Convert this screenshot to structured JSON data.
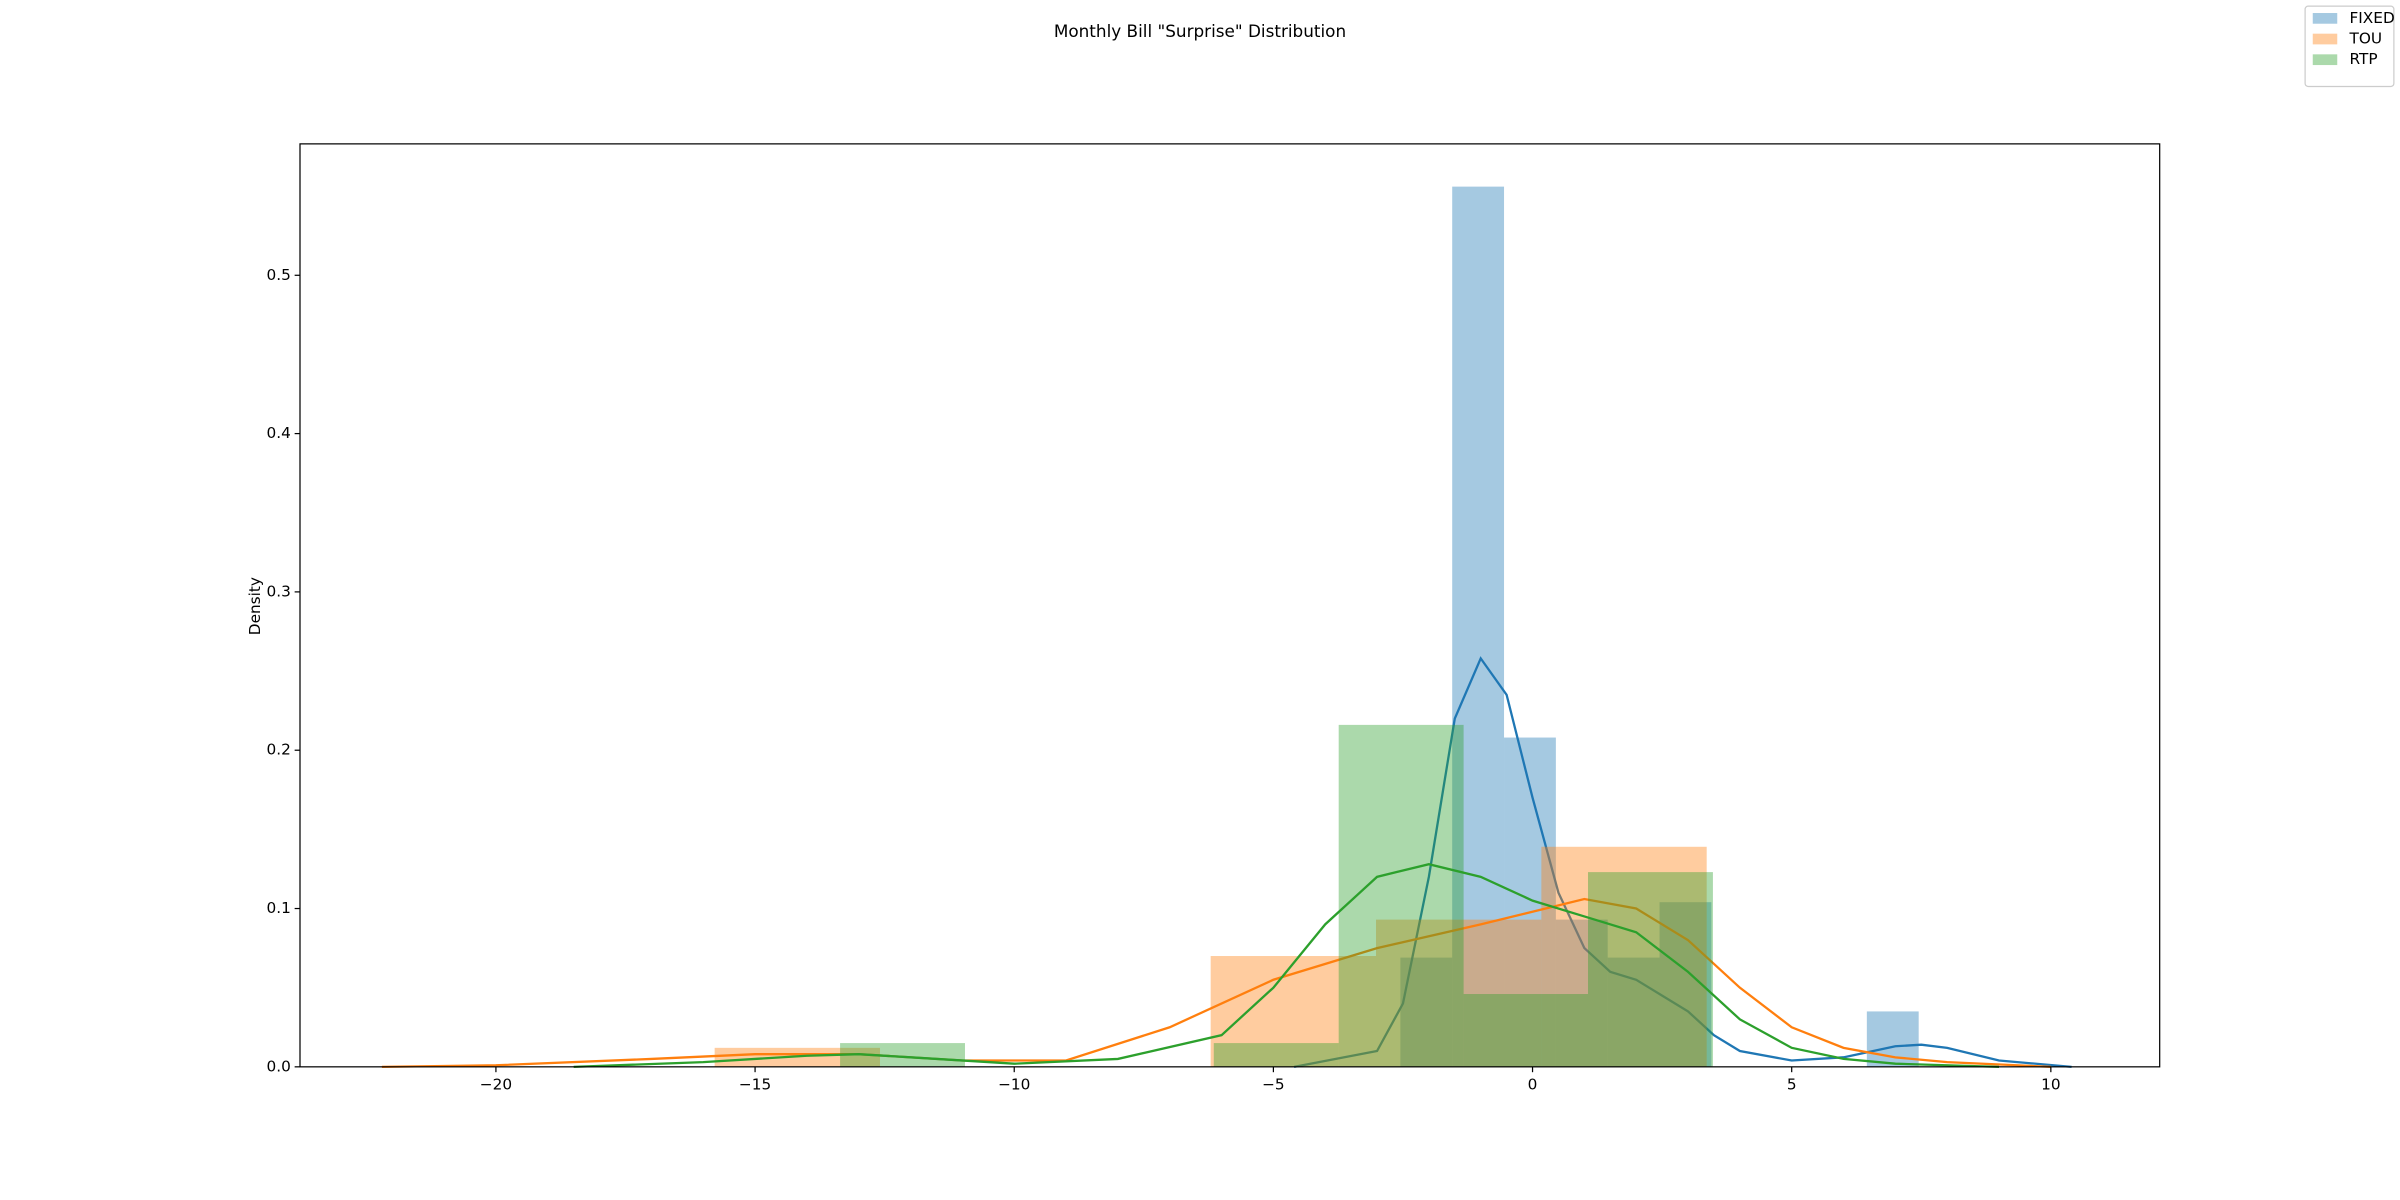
{
  "chart_data": {
    "type": "histogram",
    "title": "Monthly Bill \"Surprise\" Distribution",
    "y_label": "Density",
    "xlim": [
      -23.78,
      12.1
    ],
    "ylim": [
      0,
      0.583
    ],
    "xticks": [
      {
        "value": -20,
        "label": "−20"
      },
      {
        "value": -15,
        "label": "−15"
      },
      {
        "value": -10,
        "label": "−10"
      },
      {
        "value": -5,
        "label": "−5"
      },
      0,
      5,
      10
    ],
    "yticks": [
      {
        "value": 0,
        "label": "0.0"
      },
      0.1,
      0.2,
      0.3,
      0.4,
      0.5
    ],
    "legend": "upper right",
    "bar_opacity": 0.4,
    "series": [
      {
        "name": "FIXED",
        "color": "#1f77b4",
        "bins": [
          -4.55,
          -3.55,
          -2.55,
          -1.55,
          -0.55,
          0.45,
          1.45,
          2.45,
          3.45,
          4.45,
          5.45,
          6.45,
          7.45
        ],
        "values": [
          0,
          0,
          0.069,
          0.556,
          0.208,
          0.093,
          0.069,
          0.104,
          0,
          0,
          0,
          0.035
        ],
        "kde": {
          "x": [
            -4.6,
            -3,
            -2.5,
            -2,
            -1.5,
            -1,
            -0.5,
            0,
            0.5,
            1,
            1.5,
            2,
            2.5,
            3,
            3.5,
            4,
            5,
            6,
            7,
            7.5,
            8,
            9,
            10.4
          ],
          "y": [
            0,
            0.01,
            0.04,
            0.12,
            0.22,
            0.258,
            0.235,
            0.17,
            0.11,
            0.075,
            0.06,
            0.055,
            0.045,
            0.035,
            0.02,
            0.01,
            0.004,
            0.006,
            0.013,
            0.014,
            0.012,
            0.004,
            0
          ]
        }
      },
      {
        "name": "TOU",
        "color": "#ff7f0e",
        "bins": [
          -15.78,
          -12.59,
          -9.4,
          -6.21,
          -3.02,
          0.17,
          3.36
        ],
        "values": [
          0.012,
          0,
          0,
          0.07,
          0.093,
          0.139
        ],
        "kde": {
          "x": [
            -22.2,
            -20,
            -17,
            -15,
            -13,
            -11,
            -9,
            -7,
            -5,
            -3,
            -1,
            1,
            2,
            3,
            4,
            5,
            6,
            7,
            8,
            10
          ],
          "y": [
            0,
            0.001,
            0.005,
            0.008,
            0.008,
            0.004,
            0.004,
            0.025,
            0.055,
            0.075,
            0.09,
            0.106,
            0.1,
            0.08,
            0.05,
            0.025,
            0.012,
            0.006,
            0.003,
            0
          ]
        }
      },
      {
        "name": "RTP",
        "color": "#2ca02c",
        "bins": [
          -13.36,
          -10.95,
          -8.55,
          -6.15,
          -3.74,
          -1.33,
          1.07,
          3.48
        ],
        "values": [
          0.015,
          0,
          0,
          0.015,
          0.216,
          0.046,
          0.123
        ],
        "kde": {
          "x": [
            -18.5,
            -16,
            -14,
            -13,
            -12,
            -10,
            -8,
            -6,
            -5,
            -4,
            -3,
            -2,
            -1,
            0,
            1,
            2,
            3,
            4,
            5,
            6,
            7,
            9
          ],
          "y": [
            0,
            0.003,
            0.007,
            0.008,
            0.006,
            0.002,
            0.005,
            0.02,
            0.05,
            0.09,
            0.12,
            0.128,
            0.12,
            0.105,
            0.095,
            0.085,
            0.06,
            0.03,
            0.012,
            0.005,
            0.002,
            0
          ]
        }
      }
    ]
  }
}
